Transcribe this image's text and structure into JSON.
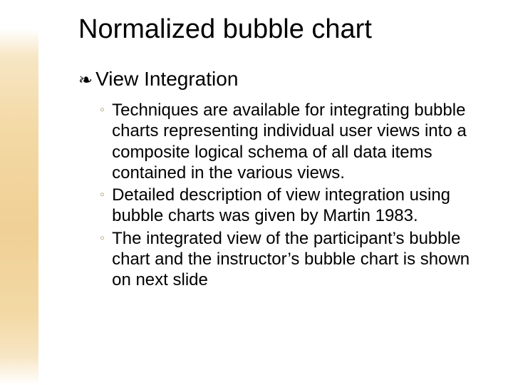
{
  "slide": {
    "title": "Normalized bubble chart",
    "bullet_marker": "❧",
    "bullet_text": "View Integration",
    "sub_marker": "◦",
    "sub_items": [
      "Techniques are available for integrating bubble charts representing individual user views into a composite logical schema of all data items contained in the various views.",
      "Detailed description of view integration using bubble charts was given by Martin 1983.",
      "The integrated view of the participant’s bubble chart and the instructor’s bubble chart is shown on next slide"
    ],
    "colors": {
      "title": "#000000",
      "body": "#000000",
      "sub_marker": "#b69f6e",
      "background": "#ffffff",
      "stripe_mid": "#f0d095"
    },
    "fontsize": {
      "title": 38,
      "bullet": 28,
      "sub": 24
    }
  }
}
